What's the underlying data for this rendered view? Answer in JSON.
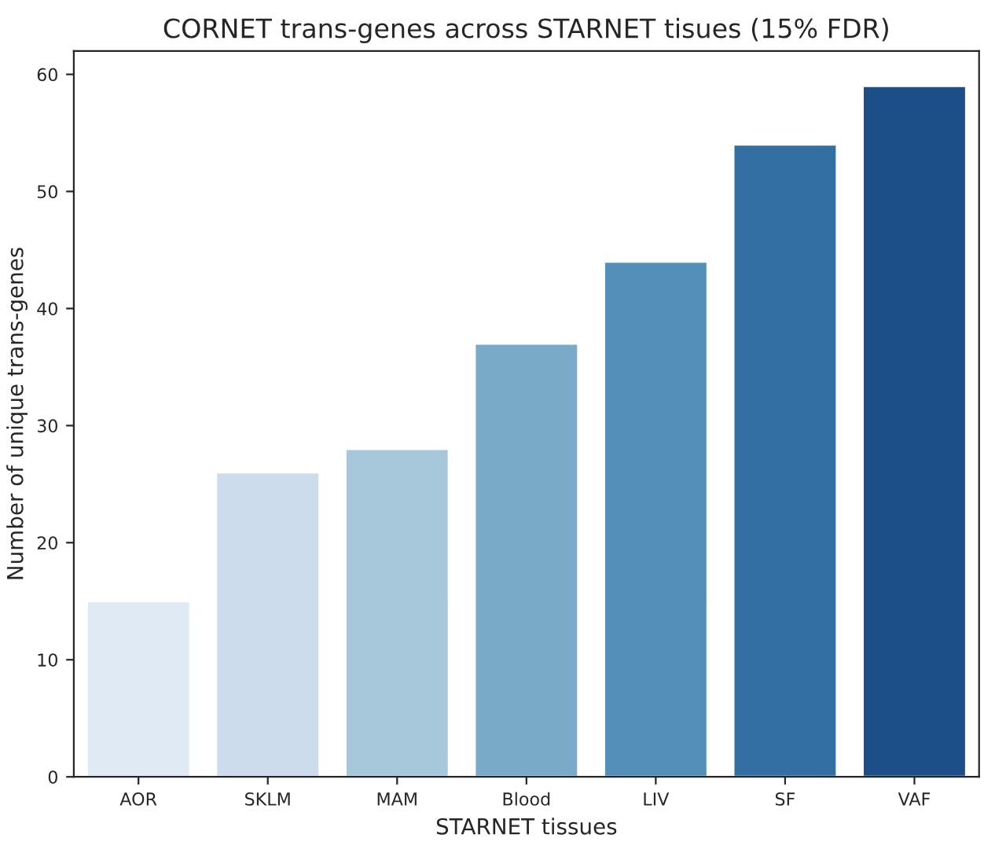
{
  "chart_data": {
    "type": "bar",
    "title": "CORNET trans-genes across STARNET tisues (15% FDR)",
    "xlabel": "STARNET tissues",
    "ylabel": "Number of unique trans-genes",
    "categories": [
      "AOR",
      "SKLM",
      "MAM",
      "Blood",
      "LIV",
      "SF",
      "VAF"
    ],
    "values": [
      15,
      26,
      28,
      37,
      44,
      54,
      59
    ],
    "colors": [
      "#e0eaf4",
      "#cddcec",
      "#a7c7da",
      "#79abc9",
      "#538fb8",
      "#336fa3",
      "#1c4f87"
    ],
    "ylim": [
      0,
      62
    ],
    "yticks": [
      0,
      10,
      20,
      30,
      40,
      50,
      60
    ],
    "grid": false
  }
}
